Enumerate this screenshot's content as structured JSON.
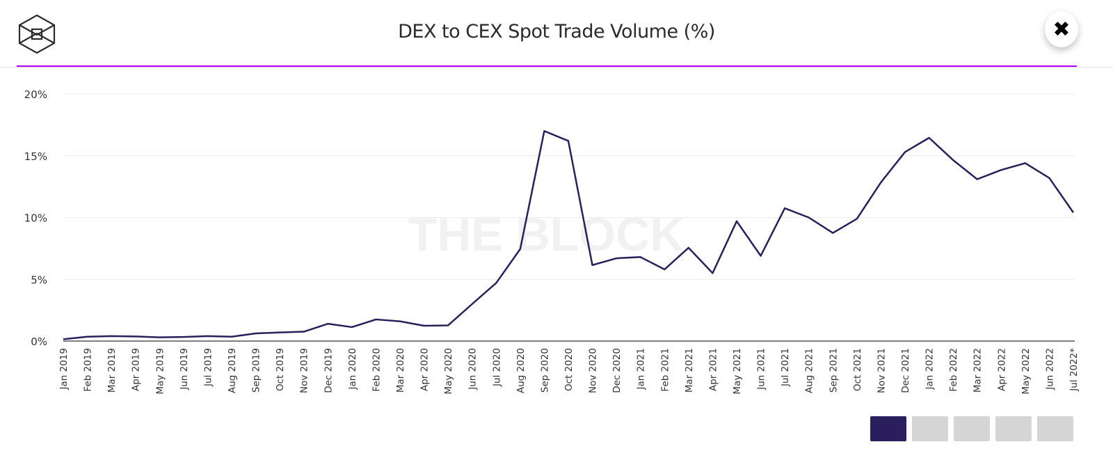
{
  "header": {
    "title": "DEX to CEX Spot Trade Volume (%)",
    "logo_icon": "the-block-cube-logo",
    "close_icon": "close-icon",
    "close_label": "✖"
  },
  "watermark": "THE BLOCK",
  "colors": {
    "line": "#2a1f5c",
    "accent_rule": "#b400ff",
    "grid": "#ececec",
    "pager_active": "#2a1f5c",
    "pager_inactive": "#d5d5d5"
  },
  "pager": {
    "count": 5,
    "active_index": 0
  },
  "chart_data": {
    "type": "line",
    "title": "DEX to CEX Spot Trade Volume (%)",
    "xlabel": "",
    "ylabel": "",
    "ylim": [
      0,
      20
    ],
    "yticks": [
      "0%",
      "5%",
      "10%",
      "15%",
      "20%"
    ],
    "grid": true,
    "categories": [
      "Jan 2019",
      "Feb 2019",
      "Mar 2019",
      "Apr 2019",
      "May 2019",
      "Jun 2019",
      "Jul 2019",
      "Aug 2019",
      "Sep 2019",
      "Oct 2019",
      "Nov 2019",
      "Dec 2019",
      "Jan 2020",
      "Feb 2020",
      "Mar 2020",
      "Apr 2020",
      "May 2020",
      "Jun 2020",
      "Jul 2020",
      "Aug 2020",
      "Sep 2020",
      "Oct 2020",
      "Nov 2020",
      "Dec 2020",
      "Jan 2021",
      "Feb 2021",
      "Mar 2021",
      "Apr 2021",
      "May 2021",
      "Jun 2021",
      "Jul 2021",
      "Aug 2021",
      "Sep 2021",
      "Oct 2021",
      "Nov 2021",
      "Dec 2021",
      "Jan 2022",
      "Feb 2022",
      "Mar 2022",
      "Apr 2022",
      "May 2022",
      "Jun 2022",
      "Jul 2022*"
    ],
    "series": [
      {
        "values": [
          0.15,
          0.35,
          0.4,
          0.37,
          0.3,
          0.33,
          0.4,
          0.35,
          0.62,
          0.7,
          0.76,
          1.4,
          1.13,
          1.75,
          1.6,
          1.24,
          1.27,
          3.0,
          4.7,
          7.45,
          17.0,
          16.2,
          6.15,
          6.7,
          6.8,
          5.8,
          7.55,
          5.5,
          9.7,
          6.9,
          10.75,
          10.0,
          8.75,
          9.9,
          12.85,
          15.3,
          16.45,
          14.65,
          13.1,
          13.85,
          14.4,
          13.2,
          10.4
        ]
      }
    ]
  }
}
